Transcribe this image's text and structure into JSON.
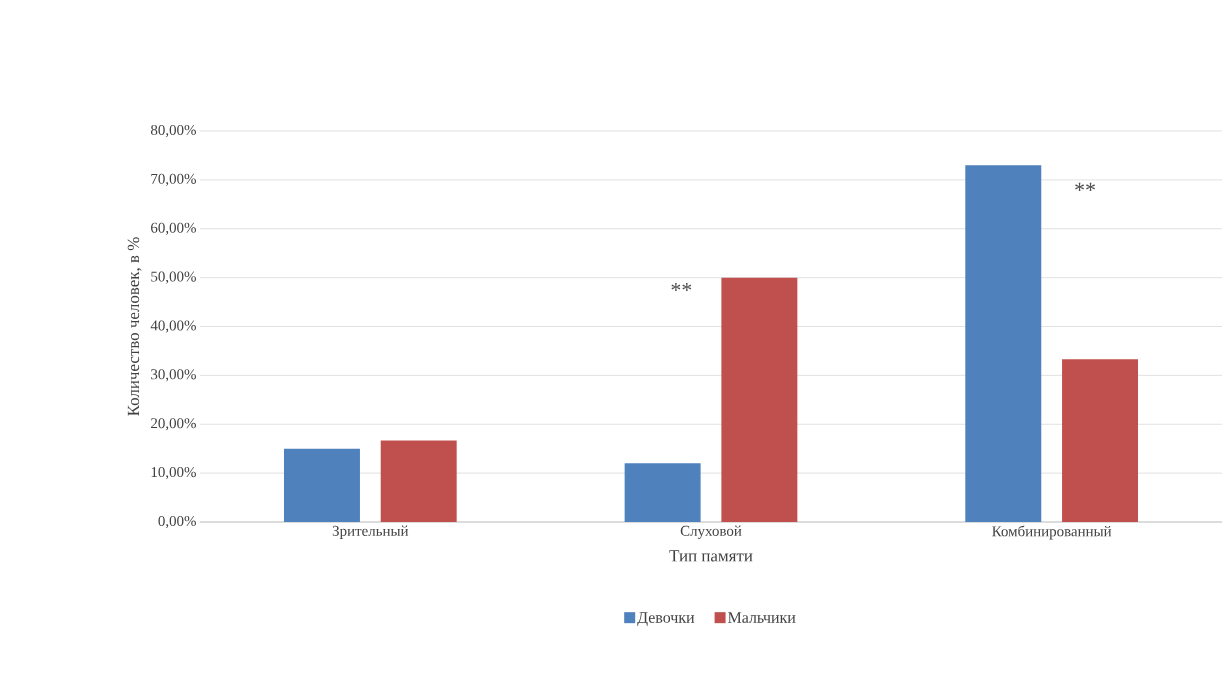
{
  "chart_data": {
    "type": "bar",
    "xlabel": "Тип памяти",
    "ylabel": "Количество человек, в %",
    "categories": [
      "Зрительный",
      "Слуховой",
      "Комбинированный"
    ],
    "series": [
      {
        "name": "Девочки",
        "color": "#4f81bd",
        "values": [
          15,
          12,
          73
        ]
      },
      {
        "name": "Мальчики",
        "color": "#c0504d",
        "values": [
          16.7,
          50,
          33.3
        ]
      }
    ],
    "ylim": [
      0,
      80
    ],
    "yticks": [
      {
        "value": 0,
        "label": "0,00%"
      },
      {
        "value": 10,
        "label": "10,00%"
      },
      {
        "value": 20,
        "label": "20,00%"
      },
      {
        "value": 30,
        "label": "30,00%"
      },
      {
        "value": 40,
        "label": "40,00%"
      },
      {
        "value": 50,
        "label": "50,00%"
      },
      {
        "value": 60,
        "label": "60,00%"
      },
      {
        "value": 70,
        "label": "70,00%"
      },
      {
        "value": 80,
        "label": "80,00%"
      }
    ],
    "grid": "y",
    "legend": "bottom",
    "annotations": [
      "**",
      "**"
    ]
  }
}
